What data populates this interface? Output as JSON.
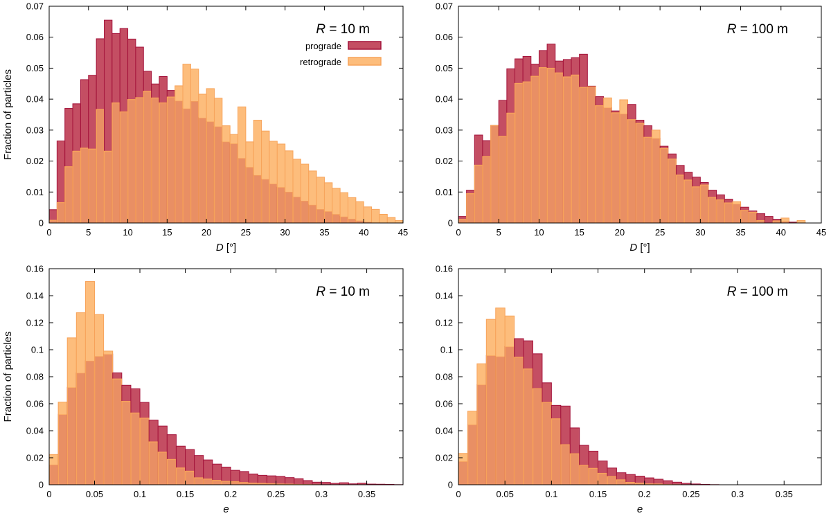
{
  "colors": {
    "prograde_fill": "#c44e63",
    "prograde_edge": "#a3123a",
    "retrograde_fill": "#fdbd7c",
    "retrograde_edge": "#f7a35a",
    "overlap_fill": "#e98f64"
  },
  "legend": {
    "prograde": "prograde",
    "retrograde": "retrograde"
  },
  "chart_data": [
    {
      "type": "bar",
      "panel_label": "R = 10 m",
      "panel_label_italic": "R",
      "panel_label_rest": " = 10 m",
      "xlabel": "[°]",
      "xlabel_italic": "D",
      "ylabel": "Fraction of particles",
      "xlim": [
        0,
        45
      ],
      "ylim": [
        0,
        0.07
      ],
      "bin_width": 1,
      "xticks": [
        0,
        5,
        10,
        15,
        20,
        25,
        30,
        35,
        40,
        45
      ],
      "xtick_labels": [
        "0",
        "5",
        "10",
        "15",
        "20",
        "25",
        "30",
        "35",
        "40",
        "45"
      ],
      "yticks": [
        0,
        0.01,
        0.02,
        0.03,
        0.04,
        0.05,
        0.06,
        0.07
      ],
      "ytick_labels": [
        "0",
        "0.01",
        "0.02",
        "0.03",
        "0.04",
        "0.05",
        "0.06",
        "0.07"
      ],
      "legend": true,
      "series": [
        {
          "name": "prograde",
          "values": [
            0.0043,
            0.0265,
            0.037,
            0.0385,
            0.0463,
            0.0477,
            0.0595,
            0.0655,
            0.0612,
            0.0628,
            0.0594,
            0.0568,
            0.049,
            0.0449,
            0.0473,
            0.0428,
            0.0395,
            0.037,
            0.0394,
            0.034,
            0.0328,
            0.0312,
            0.0263,
            0.0257,
            0.021,
            0.0181,
            0.0155,
            0.0142,
            0.0127,
            0.0116,
            0.0101,
            0.0085,
            0.0072,
            0.0059,
            0.0045,
            0.0038,
            0.0029,
            0.0021,
            0.0014,
            0.0008,
            0.0004,
            0.0002,
            0.0001,
            0,
            0
          ]
        },
        {
          "name": "retrograde",
          "values": [
            0.0009,
            0.0066,
            0.0182,
            0.0232,
            0.0242,
            0.0239,
            0.0367,
            0.0232,
            0.0388,
            0.0359,
            0.0399,
            0.0405,
            0.0426,
            0.0404,
            0.0388,
            0.0407,
            0.0443,
            0.0513,
            0.0497,
            0.0416,
            0.0434,
            0.0403,
            0.0314,
            0.0286,
            0.0375,
            0.0262,
            0.0332,
            0.0297,
            0.0264,
            0.0255,
            0.0233,
            0.0206,
            0.019,
            0.0168,
            0.0148,
            0.013,
            0.0112,
            0.0098,
            0.0082,
            0.0069,
            0.0052,
            0.0044,
            0.0028,
            0.0018,
            0.0008
          ]
        }
      ]
    },
    {
      "type": "bar",
      "panel_label": "R = 100 m",
      "panel_label_italic": "R",
      "panel_label_rest": " = 100 m",
      "xlabel": "[°]",
      "xlabel_italic": "D",
      "ylabel": "",
      "xlim": [
        0,
        45
      ],
      "ylim": [
        0,
        0.07
      ],
      "bin_width": 1,
      "xticks": [
        0,
        5,
        10,
        15,
        20,
        25,
        30,
        35,
        40,
        45
      ],
      "xtick_labels": [
        "0",
        "5",
        "10",
        "15",
        "20",
        "25",
        "30",
        "35",
        "40",
        "45"
      ],
      "yticks": [
        0,
        0.01,
        0.02,
        0.03,
        0.04,
        0.05,
        0.06,
        0.07
      ],
      "ytick_labels": [
        "0",
        "0.01",
        "0.02",
        "0.03",
        "0.04",
        "0.05",
        "0.06",
        "0.07"
      ],
      "legend": false,
      "series": [
        {
          "name": "prograde",
          "values": [
            0.0021,
            0.0106,
            0.0284,
            0.0266,
            0.0315,
            0.0396,
            0.0498,
            0.053,
            0.0538,
            0.0513,
            0.0557,
            0.0578,
            0.0523,
            0.0528,
            0.0534,
            0.0545,
            0.0442,
            0.0408,
            0.0373,
            0.0362,
            0.0353,
            0.0383,
            0.0332,
            0.0314,
            0.0274,
            0.0248,
            0.0223,
            0.0186,
            0.0164,
            0.0148,
            0.0131,
            0.0106,
            0.0091,
            0.0077,
            0.0062,
            0.0051,
            0.0039,
            0.003,
            0.0021,
            0.0012,
            0.0006,
            0.0003,
            0.0001,
            0,
            0
          ]
        },
        {
          "name": "retrograde",
          "values": [
            0.0012,
            0.0095,
            0.0187,
            0.0215,
            0.0315,
            0.028,
            0.0355,
            0.0451,
            0.0456,
            0.0474,
            0.0502,
            0.05,
            0.0485,
            0.0472,
            0.0478,
            0.0438,
            0.044,
            0.0379,
            0.0404,
            0.0356,
            0.0398,
            0.0334,
            0.0322,
            0.0277,
            0.03,
            0.0241,
            0.0207,
            0.0155,
            0.0139,
            0.0117,
            0.0123,
            0.0083,
            0.0075,
            0.0065,
            0.0069,
            0.0041,
            0.0035,
            0.0008,
            0,
            0.0007,
            0.0016,
            0,
            0.0008,
            0,
            0
          ]
        }
      ]
    },
    {
      "type": "bar",
      "panel_label": "R = 10 m",
      "panel_label_italic": "R",
      "panel_label_rest": " = 10 m",
      "xlabel": "",
      "xlabel_italic": "e",
      "ylabel": "Fraction of particles",
      "xlim": [
        0,
        0.39
      ],
      "ylim": [
        0,
        0.16
      ],
      "bin_width": 0.01,
      "xticks": [
        0,
        0.05,
        0.1,
        0.15,
        0.2,
        0.25,
        0.3,
        0.35
      ],
      "xtick_labels": [
        "0",
        "0.05",
        "0.1",
        "0.15",
        "0.2",
        "0.25",
        "0.3",
        "0.35"
      ],
      "yticks": [
        0,
        0.02,
        0.04,
        0.06,
        0.08,
        0.1,
        0.12,
        0.14,
        0.16
      ],
      "ytick_labels": [
        "0",
        "0.02",
        "0.04",
        "0.06",
        "0.08",
        "0.1",
        "0.12",
        "0.14",
        "0.16"
      ],
      "legend": false,
      "series": [
        {
          "name": "prograde",
          "values": [
            0.015,
            0.0522,
            0.0722,
            0.0829,
            0.0919,
            0.0953,
            0.0968,
            0.0829,
            0.0737,
            0.0711,
            0.061,
            0.0479,
            0.0435,
            0.0371,
            0.0286,
            0.0261,
            0.0217,
            0.0184,
            0.0153,
            0.0131,
            0.0107,
            0.0098,
            0.008,
            0.007,
            0.0066,
            0.0062,
            0.0053,
            0.0045,
            0.0031,
            0.0019,
            0.0017,
            0.0011,
            0.0015,
            0.0007,
            0.0012,
            0.0005,
            0.0004,
            0.0003,
            0.0001
          ]
        },
        {
          "name": "retrograde",
          "values": [
            0.0224,
            0.0612,
            0.1088,
            0.1274,
            0.1505,
            0.1261,
            0.099,
            0.0784,
            0.0618,
            0.0532,
            0.0494,
            0.0318,
            0.0242,
            0.0188,
            0.0125,
            0.0101,
            0.0052,
            0.0043,
            0.0033,
            0.0026,
            0.0023,
            0.0017,
            0.0013,
            0.0011,
            0.0008,
            0.0006,
            0.0005,
            0.0003,
            0.0002,
            0.0001,
            0,
            0,
            0,
            0,
            0,
            0,
            0,
            0,
            0
          ]
        }
      ]
    },
    {
      "type": "bar",
      "panel_label": "R = 100 m",
      "panel_label_italic": "R",
      "panel_label_rest": " = 100 m",
      "xlabel": "",
      "xlabel_italic": "e",
      "ylabel": "",
      "xlim": [
        0,
        0.39
      ],
      "ylim": [
        0,
        0.16
      ],
      "bin_width": 0.01,
      "xticks": [
        0,
        0.05,
        0.1,
        0.15,
        0.2,
        0.25,
        0.3,
        0.35
      ],
      "xtick_labels": [
        "0",
        "0.05",
        "0.1",
        "0.15",
        "0.2",
        "0.25",
        "0.3",
        "0.35"
      ],
      "yticks": [
        0,
        0.02,
        0.04,
        0.06,
        0.08,
        0.1,
        0.12,
        0.14,
        0.16
      ],
      "ytick_labels": [
        "0",
        "0.02",
        "0.04",
        "0.06",
        "0.08",
        "0.1",
        "0.12",
        "0.14",
        "0.16"
      ],
      "legend": false,
      "series": [
        {
          "name": "prograde",
          "values": [
            0.0174,
            0.0446,
            0.0742,
            0.0958,
            0.0951,
            0.1024,
            0.1082,
            0.1066,
            0.097,
            0.0755,
            0.0588,
            0.0583,
            0.0421,
            0.0292,
            0.0249,
            0.0176,
            0.0124,
            0.0089,
            0.0076,
            0.0064,
            0.0051,
            0.0041,
            0.003,
            0.0019,
            0.0011,
            0.0006,
            0.0003,
            0.0001,
            0,
            0,
            0,
            0,
            0,
            0,
            0,
            0,
            0,
            0,
            0
          ]
        },
        {
          "name": "retrograde",
          "values": [
            0.0232,
            0.0545,
            0.0896,
            0.1225,
            0.1309,
            0.125,
            0.0945,
            0.0858,
            0.0712,
            0.061,
            0.0489,
            0.0297,
            0.023,
            0.0144,
            0.0122,
            0.0085,
            0.0061,
            0.0037,
            0.0018,
            0.0013,
            0.0007,
            0.0006,
            0.0002,
            0.0001,
            0,
            0,
            0,
            0,
            0,
            0,
            0,
            0,
            0,
            0,
            0,
            0,
            0,
            0,
            0
          ]
        }
      ]
    }
  ]
}
